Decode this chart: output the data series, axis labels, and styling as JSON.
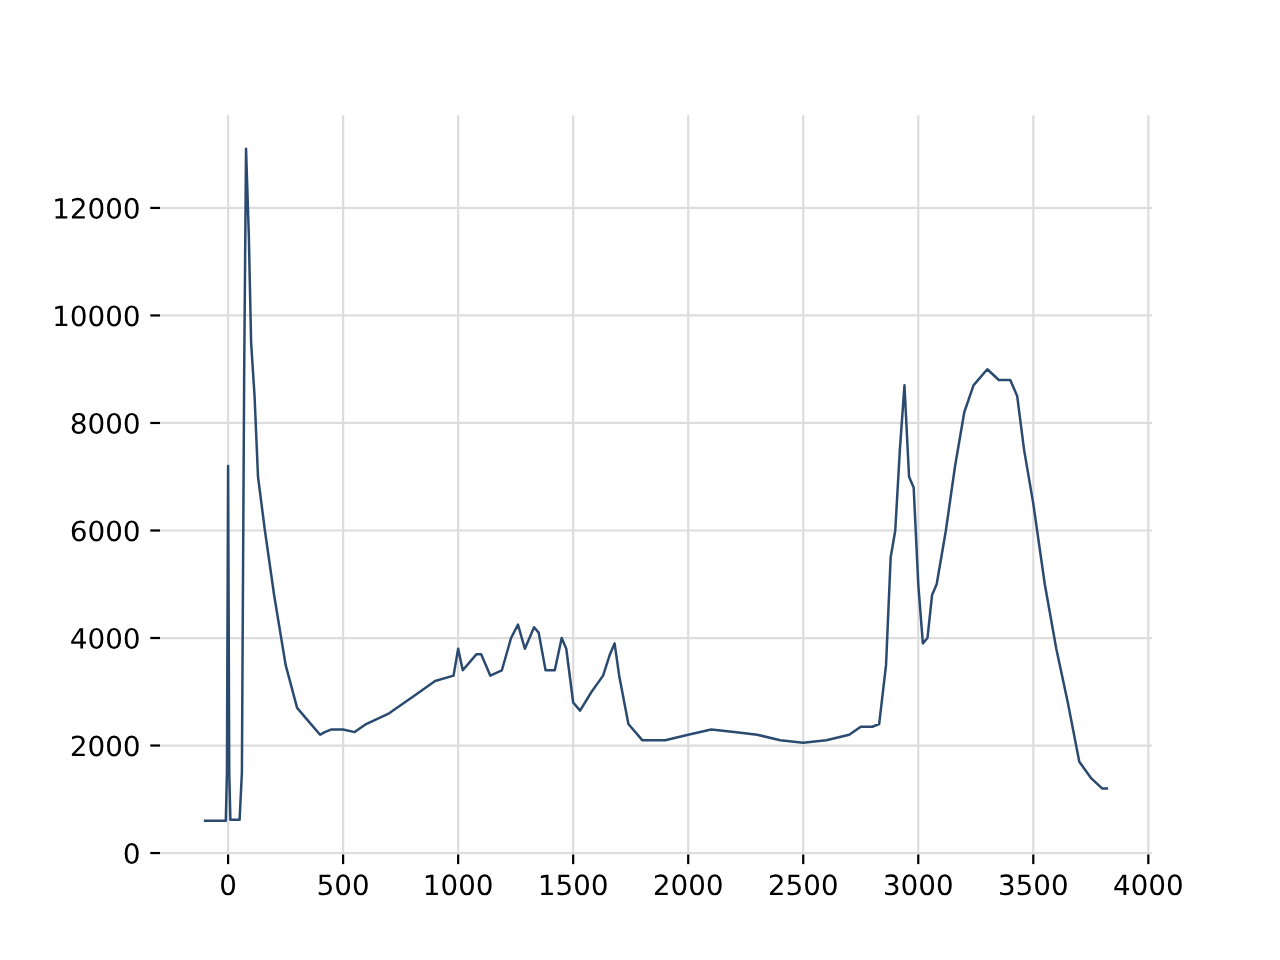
{
  "chart_data": {
    "type": "line",
    "x": [
      -100,
      -10,
      -5,
      0,
      5,
      10,
      50,
      60,
      70,
      78,
      90,
      100,
      115,
      130,
      160,
      200,
      250,
      300,
      350,
      400,
      420,
      450,
      500,
      550,
      600,
      700,
      800,
      900,
      980,
      1000,
      1020,
      1080,
      1100,
      1120,
      1140,
      1190,
      1230,
      1260,
      1290,
      1330,
      1350,
      1380,
      1420,
      1450,
      1470,
      1500,
      1530,
      1580,
      1630,
      1660,
      1680,
      1700,
      1740,
      1800,
      1900,
      2000,
      2100,
      2200,
      2300,
      2400,
      2500,
      2600,
      2700,
      2750,
      2800,
      2830,
      2860,
      2880,
      2900,
      2920,
      2940,
      2960,
      2980,
      3000,
      3020,
      3040,
      3060,
      3080,
      3120,
      3160,
      3200,
      3240,
      3300,
      3350,
      3400,
      3430,
      3460,
      3500,
      3550,
      3600,
      3650,
      3700,
      3750,
      3800,
      3820
    ],
    "series": [
      {
        "color": "#2b4a6f",
        "values": [
          600,
          600,
          1500,
          7200,
          1500,
          620,
          620,
          1500,
          9000,
          13100,
          11500,
          9500,
          8500,
          7000,
          6000,
          4800,
          3500,
          2700,
          2450,
          2200,
          2250,
          2300,
          2300,
          2250,
          2400,
          2600,
          2900,
          3200,
          3300,
          3800,
          3400,
          3700,
          3700,
          3500,
          3300,
          3400,
          4000,
          4250,
          3800,
          4200,
          4100,
          3400,
          3400,
          4000,
          3800,
          2800,
          2650,
          3000,
          3300,
          3700,
          3900,
          3300,
          2400,
          2100,
          2100,
          2200,
          2300,
          2250,
          2200,
          2100,
          2050,
          2100,
          2200,
          2350,
          2350,
          2400,
          3500,
          5500,
          6000,
          7500,
          8700,
          7000,
          6800,
          5000,
          3900,
          4000,
          4800,
          5000,
          6000,
          7200,
          8200,
          8700,
          9000,
          8800,
          8800,
          8500,
          7500,
          6500,
          5000,
          3800,
          2800,
          1700,
          1400,
          1200,
          1200
        ]
      }
    ],
    "xlim": [
      -296,
      4016
    ],
    "ylim": [
      -25,
      13725
    ],
    "xticks": [
      0,
      500,
      1000,
      1500,
      2000,
      2500,
      3000,
      3500,
      4000
    ],
    "yticks": [
      0,
      2000,
      4000,
      6000,
      8000,
      10000,
      12000
    ],
    "grid": true,
    "legend": false,
    "marker": "none",
    "line_style": "solid"
  }
}
